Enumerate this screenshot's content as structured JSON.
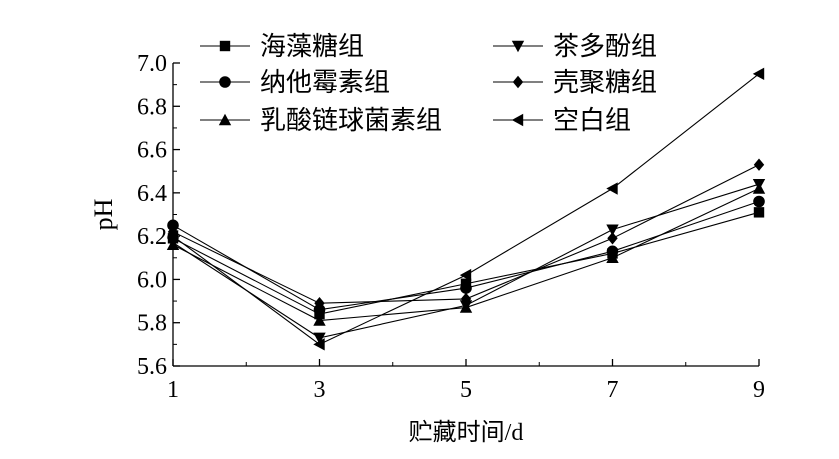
{
  "chart_data": {
    "type": "line",
    "xlabel": "贮藏时间/d",
    "ylabel": "pH",
    "x": [
      1,
      3,
      5,
      7,
      9
    ],
    "xlim": [
      1,
      9
    ],
    "ylim": [
      5.6,
      7.0
    ],
    "xticks": [
      "1",
      "3",
      "5",
      "7",
      "9"
    ],
    "yticks": [
      "5.6",
      "5.8",
      "6.0",
      "6.2",
      "6.4",
      "6.6",
      "6.8",
      "7.0"
    ],
    "grid": false,
    "legend_position": "top",
    "series": [
      {
        "name": "海藻糖组",
        "marker": "square",
        "values": [
          6.19,
          5.84,
          5.98,
          6.12,
          6.31
        ]
      },
      {
        "name": "茶多酚组",
        "marker": "triangle-down",
        "values": [
          6.17,
          5.73,
          5.88,
          6.23,
          6.44
        ]
      },
      {
        "name": "纳他霉素组",
        "marker": "circle",
        "values": [
          6.25,
          5.86,
          5.96,
          6.13,
          6.36
        ]
      },
      {
        "name": "壳聚糖组",
        "marker": "diamond",
        "values": [
          6.22,
          5.89,
          5.91,
          6.19,
          6.53
        ]
      },
      {
        "name": "乳酸链球菌素组",
        "marker": "triangle-up",
        "values": [
          6.16,
          5.81,
          5.87,
          6.1,
          6.42
        ]
      },
      {
        "name": "空白组",
        "marker": "triangle-left",
        "values": [
          6.2,
          5.7,
          6.02,
          6.42,
          6.95
        ]
      }
    ]
  }
}
